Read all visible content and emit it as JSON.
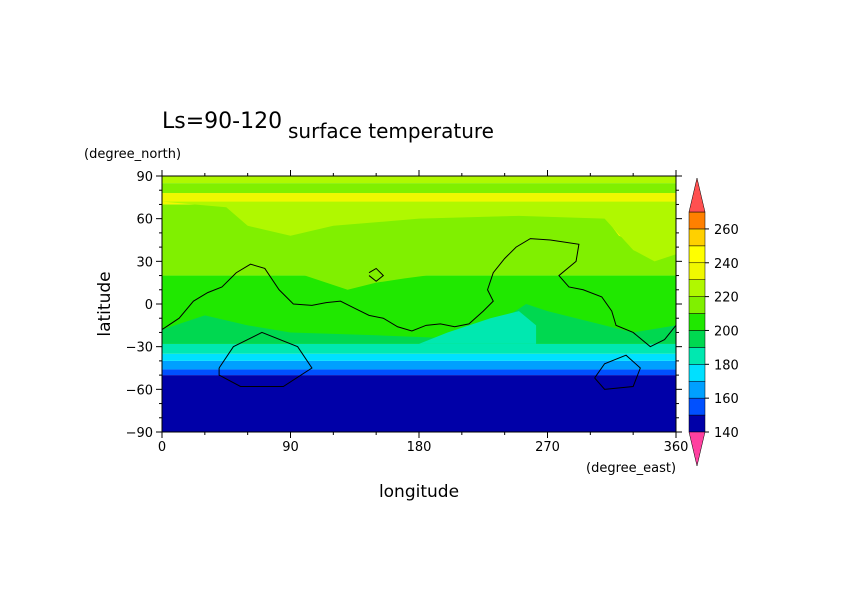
{
  "chart_data": {
    "type": "heatmap",
    "title": "surface temperature",
    "subtitle": "Ls=90-120",
    "xlabel": "longitude",
    "ylabel": "latitude",
    "xunit": "(degree_east)",
    "yunit": "(degree_north)",
    "xlim": [
      0,
      360
    ],
    "ylim": [
      -90,
      90
    ],
    "xticks": [
      0,
      90,
      180,
      270,
      360
    ],
    "yticks": [
      -90,
      -60,
      -30,
      0,
      30,
      60,
      90
    ],
    "colorbar": {
      "levels": [
        140,
        150,
        160,
        170,
        180,
        190,
        200,
        210,
        220,
        230,
        240,
        250,
        260,
        270
      ],
      "tick_labels": [
        140,
        160,
        180,
        200,
        220,
        240,
        260
      ],
      "colors": [
        "#0000a8",
        "#0050ff",
        "#00a0ff",
        "#00e0ff",
        "#00e8b0",
        "#00d850",
        "#20e800",
        "#80f000",
        "#b0f800",
        "#f0f800",
        "#ffff00",
        "#ffd000",
        "#ff8000",
        "#ff0000",
        "#ff5050"
      ],
      "under_color": "#ff40a0",
      "over_color": "#ff5050"
    },
    "bands": [
      {
        "lat_from": -90,
        "lat_to": -50,
        "value": 145
      },
      {
        "lat_from": -50,
        "lat_to": -46,
        "value": 155
      },
      {
        "lat_from": -46,
        "lat_to": -40,
        "value": 165
      },
      {
        "lat_from": -40,
        "lat_to": -35,
        "value": 175
      },
      {
        "lat_from": -35,
        "lat_to": -28,
        "value": 185
      },
      {
        "lat_from": -28,
        "lat_to": 20,
        "value": 205
      },
      {
        "lat_from": 20,
        "lat_to": 70,
        "value": 215
      },
      {
        "lat_from": 70,
        "lat_to": 78,
        "value": 235
      },
      {
        "lat_from": 78,
        "lat_to": 85,
        "value": 215
      },
      {
        "lat_from": 85,
        "lat_to": 90,
        "value": 225
      }
    ],
    "regions": [
      {
        "value": 195,
        "points": [
          [
            0,
            -18
          ],
          [
            30,
            -8
          ],
          [
            60,
            -15
          ],
          [
            90,
            -20
          ],
          [
            150,
            -22
          ],
          [
            200,
            -24
          ],
          [
            240,
            -10
          ],
          [
            255,
            0
          ],
          [
            270,
            -5
          ],
          [
            290,
            -10
          ],
          [
            330,
            -20
          ],
          [
            360,
            -15
          ],
          [
            360,
            -28
          ],
          [
            0,
            -28
          ]
        ]
      },
      {
        "value": 185,
        "points": [
          [
            180,
            -28
          ],
          [
            200,
            -20
          ],
          [
            230,
            -10
          ],
          [
            250,
            -5
          ],
          [
            262,
            -15
          ],
          [
            262,
            -28
          ]
        ]
      },
      {
        "value": 215,
        "points": [
          [
            20,
            25
          ],
          [
            40,
            30
          ],
          [
            70,
            28
          ],
          [
            100,
            20
          ],
          [
            130,
            10
          ],
          [
            150,
            15
          ],
          [
            170,
            18
          ],
          [
            200,
            22
          ],
          [
            230,
            28
          ],
          [
            260,
            35
          ],
          [
            280,
            30
          ],
          [
            300,
            20
          ],
          [
            330,
            22
          ],
          [
            360,
            25
          ],
          [
            360,
            35
          ],
          [
            0,
            35
          ]
        ]
      },
      {
        "value": 235,
        "points": [
          [
            0,
            75
          ],
          [
            20,
            72
          ],
          [
            50,
            70
          ],
          [
            65,
            58
          ],
          [
            80,
            52
          ],
          [
            100,
            60
          ],
          [
            130,
            65
          ],
          [
            170,
            70
          ],
          [
            210,
            70
          ],
          [
            250,
            72
          ],
          [
            300,
            75
          ],
          [
            320,
            48
          ],
          [
            340,
            40
          ],
          [
            360,
            50
          ],
          [
            360,
            78
          ],
          [
            0,
            78
          ]
        ]
      },
      {
        "value": 225,
        "points": [
          [
            0,
            72
          ],
          [
            45,
            68
          ],
          [
            60,
            55
          ],
          [
            90,
            48
          ],
          [
            120,
            55
          ],
          [
            180,
            60
          ],
          [
            250,
            62
          ],
          [
            310,
            60
          ],
          [
            330,
            38
          ],
          [
            345,
            30
          ],
          [
            360,
            35
          ],
          [
            360,
            72
          ]
        ]
      }
    ],
    "contours": [
      {
        "points": [
          [
            0,
            -18
          ],
          [
            12,
            -10
          ],
          [
            22,
            2
          ],
          [
            32,
            8
          ],
          [
            42,
            12
          ],
          [
            52,
            22
          ],
          [
            62,
            28
          ],
          [
            72,
            25
          ],
          [
            82,
            10
          ],
          [
            92,
            0
          ],
          [
            105,
            -1
          ],
          [
            115,
            1
          ],
          [
            125,
            2
          ],
          [
            135,
            -3
          ],
          [
            145,
            -8
          ],
          [
            155,
            -10
          ],
          [
            165,
            -16
          ],
          [
            175,
            -19
          ],
          [
            185,
            -15
          ],
          [
            195,
            -14
          ],
          [
            205,
            -16
          ],
          [
            215,
            -14
          ],
          [
            225,
            -5
          ],
          [
            232,
            2
          ],
          [
            228,
            10
          ],
          [
            232,
            22
          ],
          [
            240,
            32
          ],
          [
            248,
            40
          ],
          [
            258,
            46
          ],
          [
            272,
            45
          ],
          [
            292,
            42
          ],
          [
            290,
            30
          ],
          [
            278,
            20
          ],
          [
            285,
            12
          ],
          [
            295,
            10
          ],
          [
            308,
            5
          ],
          [
            315,
            -5
          ],
          [
            318,
            -15
          ],
          [
            330,
            -20
          ],
          [
            342,
            -30
          ],
          [
            352,
            -25
          ],
          [
            360,
            -15
          ]
        ]
      },
      {
        "points": [
          [
            145,
            22
          ],
          [
            150,
            25
          ],
          [
            155,
            20
          ],
          [
            150,
            16
          ],
          [
            145,
            20
          ]
        ]
      },
      {
        "points": [
          [
            40,
            -45
          ],
          [
            50,
            -30
          ],
          [
            70,
            -20
          ],
          [
            95,
            -30
          ],
          [
            105,
            -45
          ],
          [
            85,
            -58
          ],
          [
            55,
            -58
          ],
          [
            40,
            -50
          ],
          [
            40,
            -45
          ]
        ]
      },
      {
        "points": [
          [
            303,
            -52
          ],
          [
            310,
            -42
          ],
          [
            325,
            -36
          ],
          [
            335,
            -45
          ],
          [
            330,
            -58
          ],
          [
            310,
            -60
          ],
          [
            303,
            -52
          ]
        ]
      }
    ]
  }
}
